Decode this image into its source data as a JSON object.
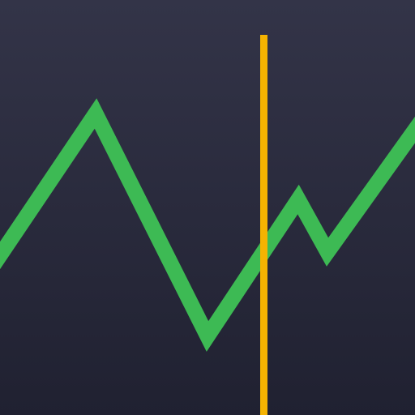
{
  "icon": {
    "name": "line-chart-app-icon",
    "colors": {
      "background_top": "#333448",
      "background_bottom": "#202131",
      "grid_line": "#4a4a66",
      "series_line": "#3dba54",
      "cursor_line": "#f5b301"
    },
    "shows_grid_lines": true,
    "shows_cursor_line": true
  }
}
